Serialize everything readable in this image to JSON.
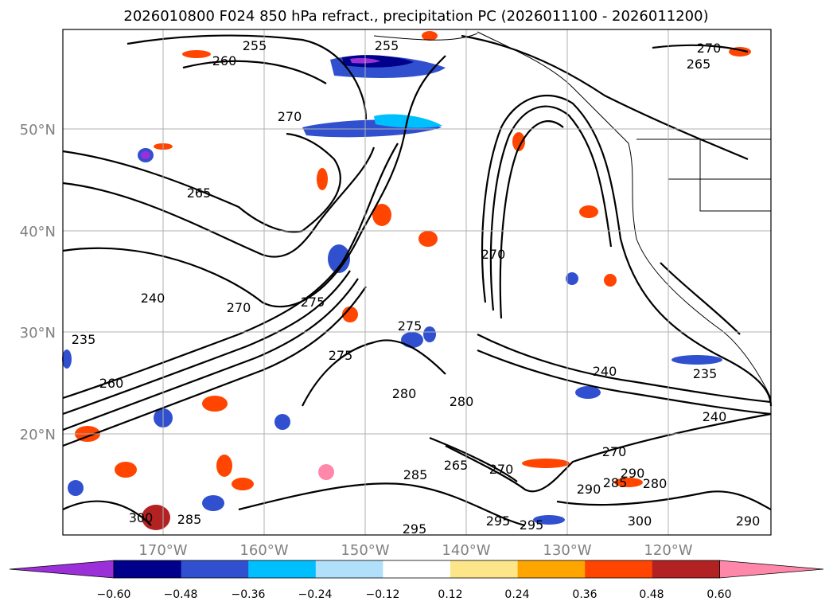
{
  "title": "2026010800 F024 850 hPa refract., precipitation PC (2026011100 - 2026011200)",
  "map": {
    "lon_ticks": [
      "170°W",
      "160°W",
      "150°W",
      "140°W",
      "130°W",
      "120°W"
    ],
    "lat_ticks": [
      "50°N",
      "40°N",
      "30°N",
      "20°N"
    ],
    "contour_labels": [
      "255",
      "260",
      "255",
      "270",
      "265",
      "270",
      "265",
      "270",
      "240",
      "270",
      "275",
      "235",
      "260",
      "275",
      "275",
      "280",
      "280",
      "265",
      "270",
      "285",
      "295",
      "295",
      "295",
      "300",
      "285",
      "280",
      "290",
      "270",
      "240",
      "235",
      "240",
      "285",
      "290",
      "300",
      "290"
    ]
  },
  "colorbar": {
    "ticks": [
      "−0.60",
      "−0.48",
      "−0.36",
      "−0.24",
      "−0.12",
      "0.12",
      "0.24",
      "0.36",
      "0.48",
      "0.60"
    ],
    "colors": [
      "#9b30d9",
      "#00008b",
      "#3050d0",
      "#00bfff",
      "#b0e0fa",
      "#ffffff",
      "#fde68a",
      "#ffa500",
      "#ff4500",
      "#b22222",
      "#ff88aa"
    ]
  }
}
